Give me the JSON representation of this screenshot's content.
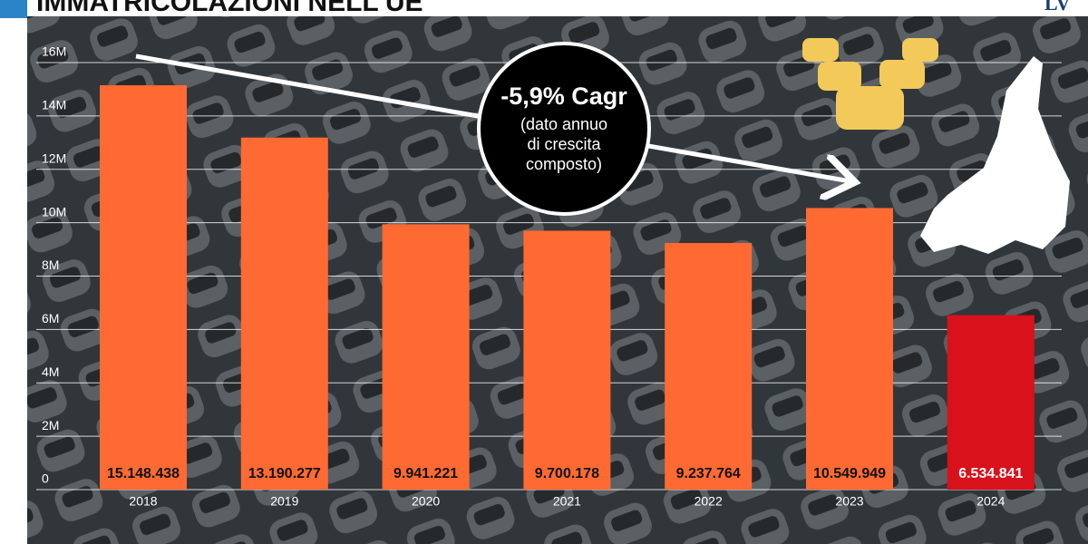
{
  "chart_data": {
    "type": "bar",
    "title": "IMMATRICOLAZIONI NELL'UE",
    "logo": "LV",
    "annotation": {
      "headline": "-5,9% Cagr",
      "lines": [
        "(dato annuo",
        "di crescita",
        "composto)"
      ]
    },
    "categories": [
      "2018",
      "2019",
      "2020",
      "2021",
      "2022",
      "2023",
      "2024"
    ],
    "values": [
      15148438,
      13190277,
      9941221,
      9700178,
      9237764,
      10549949,
      6534841
    ],
    "value_labels": [
      "15.148.438",
      "13.190.277",
      "9.941.221",
      "9.700.178",
      "9.237.764",
      "10.549.949",
      "6.534.841"
    ],
    "colors": [
      "#ff6a33",
      "#ff6a33",
      "#ff6a33",
      "#ff6a33",
      "#ff6a33",
      "#ff6a33",
      "#d9111b"
    ],
    "ylim": [
      0,
      16000000
    ],
    "yticks": [
      0,
      {
        "value": 2000000,
        "label": "2M"
      },
      {
        "value": 4000000,
        "label": "4M"
      },
      {
        "value": 6000000,
        "label": "6M"
      },
      {
        "value": 8000000,
        "label": "8M"
      },
      {
        "value": 10000000,
        "label": "10M"
      },
      {
        "value": 12000000,
        "label": "12M"
      },
      {
        "value": 14000000,
        "label": "14M"
      },
      {
        "value": 16000000,
        "label": "16M"
      }
    ],
    "grid": true
  }
}
